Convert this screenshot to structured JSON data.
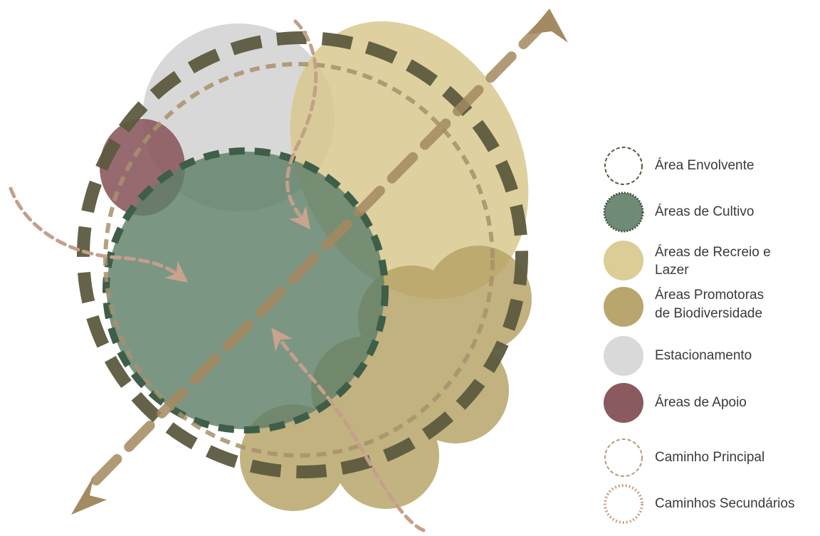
{
  "legend": {
    "items": [
      {
        "key": "envolvente",
        "label": "Área Envolvente",
        "symbol": "dashed-ring",
        "color": "#5c5a3e"
      },
      {
        "key": "cultivo",
        "label": "Áreas de Cultivo",
        "symbol": "filled-dotted",
        "color": "#6f8a75",
        "stroke": "#3f5640"
      },
      {
        "key": "recreio",
        "label": "Áreas de Recreio e Lazer",
        "lines": [
          "Áreas de Recreio e",
          "Lazer"
        ],
        "symbol": "filled",
        "color": "#dccd96"
      },
      {
        "key": "biodiversidade",
        "label": "Áreas Promotoras de Biodiversidade",
        "lines": [
          "Áreas Promotoras",
          "de Biodiversidade"
        ],
        "symbol": "filled",
        "color": "#b8a66e"
      },
      {
        "key": "estacionamento",
        "label": "Estacionamento",
        "symbol": "filled",
        "color": "#d9d9d9"
      },
      {
        "key": "apoio",
        "label": "Áreas de Apoio",
        "symbol": "filled",
        "color": "#8b5a5f"
      },
      {
        "key": "principal",
        "label": "Caminho Principal",
        "symbol": "dashed-ring",
        "color": "#b89a7c"
      },
      {
        "key": "secundarios",
        "label": "Caminhos Secundários",
        "symbol": "dotted-ring",
        "color": "#c4a488"
      }
    ]
  }
}
